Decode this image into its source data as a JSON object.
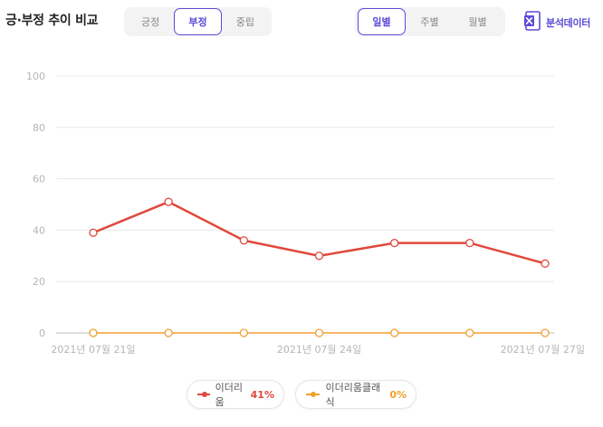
{
  "header": {
    "title": "긍·부정 추이 비교",
    "sentiment_tabs": [
      {
        "label": "긍정",
        "active": false
      },
      {
        "label": "부정",
        "active": true
      },
      {
        "label": "중립",
        "active": false
      }
    ],
    "period_tabs": [
      {
        "label": "일별",
        "active": true
      },
      {
        "label": "주별",
        "active": false
      },
      {
        "label": "월별",
        "active": false
      }
    ],
    "export_label": "분석데이터",
    "export_icon": "excel-icon"
  },
  "colors": {
    "accent": "#5b4ad6",
    "series_1": "#e0483c",
    "series_2": "#f0a030"
  },
  "legend": [
    {
      "name": "이더리움",
      "percent": "41%",
      "color": "#e0483c"
    },
    {
      "name": "이더리움클래식",
      "percent": "0%",
      "color": "#f0a030"
    }
  ],
  "chart_data": {
    "type": "line",
    "x": [
      "2021-07-21",
      "2021-07-22",
      "2021-07-23",
      "2021-07-24",
      "2021-07-25",
      "2021-07-26",
      "2021-07-27"
    ],
    "x_tick_labels": [
      "2021년 07월 21일",
      "2021년 07월 24일",
      "2021년 07월 27일"
    ],
    "y_tick_labels": [
      "0",
      "20",
      "40",
      "60",
      "80",
      "100"
    ],
    "ylim": [
      0,
      100
    ],
    "grid": true,
    "legend_position": "bottom",
    "series": [
      {
        "name": "이더리움",
        "values": [
          39,
          51,
          36,
          30,
          35,
          35,
          27
        ],
        "color": "#e0483c"
      },
      {
        "name": "이더리움클래식",
        "values": [
          0,
          0,
          0,
          0,
          0,
          0,
          0
        ],
        "color": "#f0a030"
      }
    ]
  }
}
